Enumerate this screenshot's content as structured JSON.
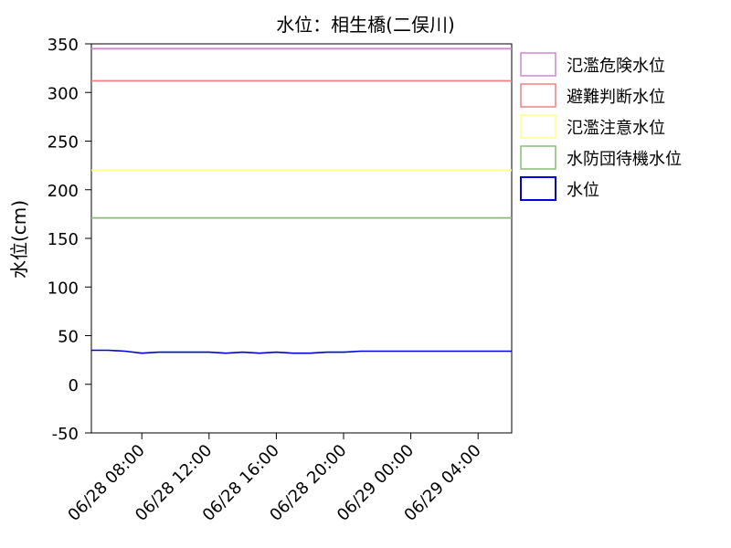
{
  "chart_data": {
    "type": "line",
    "title": "水位：相生橋(二俣川)",
    "ylabel": "水位(cm)",
    "ylim": [
      -50,
      350
    ],
    "y_ticks": [
      "-50",
      "0",
      "50",
      "100",
      "150",
      "200",
      "250",
      "300",
      "350"
    ],
    "x_ticks": [
      "06/28 08:00",
      "06/28 12:00",
      "06/28 16:00",
      "06/28 20:00",
      "06/29 00:00",
      "06/29 04:00"
    ],
    "xlim": [
      "06/28 05:00",
      "06/29 06:00"
    ],
    "legend_position": "right-top",
    "thresholds": [
      {
        "name": "氾濫危険水位",
        "value": 345,
        "color": "#cc88cc"
      },
      {
        "name": "避難判断水位",
        "value": 312,
        "color": "#f08080"
      },
      {
        "name": "氾濫注意水位",
        "value": 220,
        "color": "#ffff88"
      },
      {
        "name": "水防団待機水位",
        "value": 171,
        "color": "#88bb77"
      }
    ],
    "series": [
      {
        "name": "水位",
        "color": "#0000dd",
        "x": [
          "06/28 05:00",
          "06/28 06:00",
          "06/28 07:00",
          "06/28 08:00",
          "06/28 09:00",
          "06/28 10:00",
          "06/28 11:00",
          "06/28 12:00",
          "06/28 13:00",
          "06/28 14:00",
          "06/28 15:00",
          "06/28 16:00",
          "06/28 17:00",
          "06/28 18:00",
          "06/28 19:00",
          "06/28 20:00",
          "06/28 21:00",
          "06/28 22:00",
          "06/28 23:00",
          "06/29 00:00",
          "06/29 01:00",
          "06/29 02:00",
          "06/29 03:00",
          "06/29 04:00",
          "06/29 05:00",
          "06/29 06:00"
        ],
        "values": [
          35,
          35,
          34,
          32,
          33,
          33,
          33,
          33,
          32,
          33,
          32,
          33,
          32,
          32,
          33,
          33,
          34,
          34,
          34,
          34,
          34,
          34,
          34,
          34,
          34,
          34
        ]
      }
    ]
  }
}
